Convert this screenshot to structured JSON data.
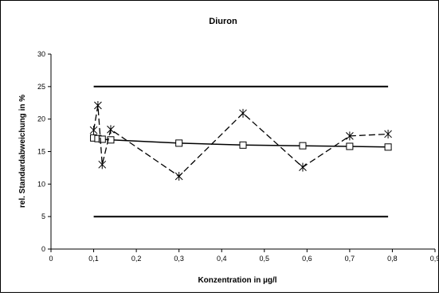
{
  "chart_data": {
    "type": "line",
    "title": "Diuron",
    "xlabel": "Konzentration in µg/l",
    "ylabel": "rel. Standardabweichung in %",
    "xlim": [
      0,
      0.9
    ],
    "ylim": [
      0,
      30
    ],
    "x_ticks": [
      "0",
      "0,1",
      "0,2",
      "0,3",
      "0,4",
      "0,5",
      "0,6",
      "0,7",
      "0,8",
      "0,9"
    ],
    "y_ticks": [
      "0",
      "5",
      "10",
      "15",
      "20",
      "25",
      "30"
    ],
    "grid": false,
    "legend": "none",
    "series": [
      {
        "style": "solid-square",
        "color": "#000000",
        "x": [
          0.1,
          0.11,
          0.12,
          0.14,
          0.3,
          0.45,
          0.59,
          0.7,
          0.79
        ],
        "values": [
          17.1,
          17.0,
          16.9,
          16.8,
          16.3,
          16.0,
          15.9,
          15.8,
          15.7
        ]
      },
      {
        "style": "dashed-asterisk",
        "color": "#000000",
        "x": [
          0.1,
          0.11,
          0.12,
          0.14,
          0.3,
          0.45,
          0.59,
          0.7,
          0.79
        ],
        "values": [
          18.3,
          22.1,
          13.0,
          18.4,
          11.2,
          20.9,
          12.6,
          17.4,
          17.7
        ]
      },
      {
        "style": "solid-bold",
        "color": "#000000",
        "x": [
          0.1,
          0.79
        ],
        "values": [
          25,
          25
        ]
      },
      {
        "style": "solid-bold",
        "color": "#000000",
        "x": [
          0.1,
          0.79
        ],
        "values": [
          5,
          5
        ]
      }
    ]
  }
}
